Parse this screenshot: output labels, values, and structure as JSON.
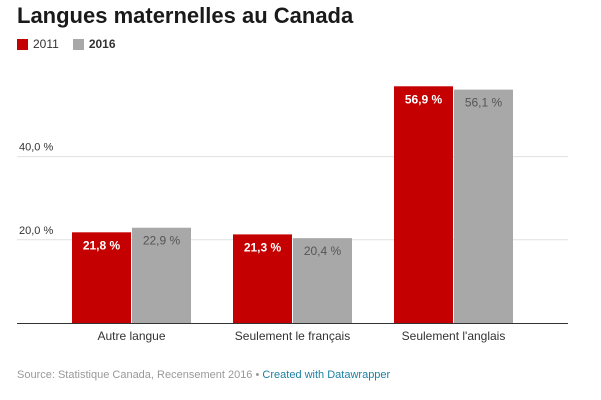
{
  "chart_data": {
    "type": "bar",
    "title": "Langues maternelles au Canada",
    "categories": [
      "Autre langue",
      "Seulement le français",
      "Seulement l'anglais"
    ],
    "series": [
      {
        "name": "2011",
        "color": "#c40000",
        "values": [
          21.8,
          21.3,
          56.9
        ],
        "labels": [
          "21,8 %",
          "21,3 %",
          "56,9 %"
        ]
      },
      {
        "name": "2016",
        "color": "#a8a8a8",
        "values": [
          22.9,
          20.4,
          56.1
        ],
        "labels": [
          "22,9 %",
          "20,4 %",
          "56,1 %"
        ]
      }
    ],
    "y_ticks": [
      {
        "value": 20,
        "label": "20,0 %"
      },
      {
        "value": 40,
        "label": "40,0 %"
      }
    ],
    "ylim": [
      0,
      60
    ],
    "grid": true,
    "legend_position": "top-left"
  },
  "footer": {
    "source": "Source: Statistique Canada, Recensement 2016",
    "separator": "•",
    "credit": "Created with Datawrapper"
  }
}
